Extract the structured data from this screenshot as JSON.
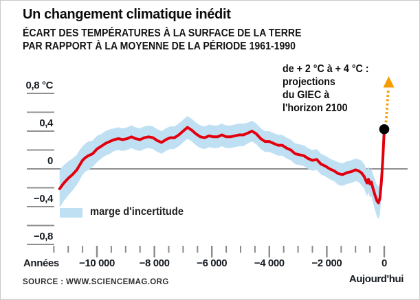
{
  "colors": {
    "line_red": "#e3000e",
    "band_blue": "#bfe0f3",
    "axis_gray": "#8f8f8f",
    "arrow_orange": "#f59c00",
    "dot_black": "#000000"
  },
  "source": {
    "text": "SOURCE : WWW.SCIENCEMAG.ORG"
  },
  "chart_data": {
    "type": "line",
    "title": "Un changement climatique inédit",
    "subtitle_line1": "ÉCART DES TEMPÉRATURES À LA SURFACE DE LA TERRE",
    "subtitle_line2": "PAR RAPPORT À LA MOYENNE DE LA PÉRIODE 1961-1990",
    "x_axis_label": "Années",
    "today_label": "Aujourd'hui",
    "legend_position": "bottom-left-inside",
    "grid": "zero-line-only",
    "x_range": [
      -11500,
      0
    ],
    "ylim": [
      -0.9,
      0.9
    ],
    "xticks_major": [
      -10000,
      -8000,
      -6000,
      -4000,
      -2000,
      0
    ],
    "xtick_labels": [
      "−10 000",
      "−8 000",
      "−6 000",
      "−4 000",
      "−2 000",
      "0"
    ],
    "xtick_minor_step": 500,
    "yticks_major": [
      0.8,
      0.4,
      0,
      -0.4,
      -0.8
    ],
    "ytick_labels": [
      "0,8 °C",
      "0,4",
      "0",
      "−0,4",
      "−0,8"
    ],
    "ytick_minor_step": 0.2,
    "series": [
      {
        "name": "écart des températures (°C)",
        "type": "line",
        "years": [
          -11300,
          -11150,
          -11000,
          -10850,
          -10700,
          -10600,
          -10500,
          -10400,
          -10300,
          -10150,
          -10000,
          -9850,
          -9700,
          -9550,
          -9400,
          -9250,
          -9100,
          -8950,
          -8800,
          -8650,
          -8500,
          -8350,
          -8200,
          -8050,
          -7900,
          -7750,
          -7600,
          -7450,
          -7300,
          -7150,
          -7000,
          -6850,
          -6700,
          -6550,
          -6400,
          -6250,
          -6100,
          -5950,
          -5800,
          -5650,
          -5500,
          -5350,
          -5200,
          -5050,
          -4900,
          -4750,
          -4600,
          -4450,
          -4300,
          -4150,
          -4000,
          -3850,
          -3700,
          -3550,
          -3400,
          -3250,
          -3100,
          -2950,
          -2800,
          -2650,
          -2500,
          -2350,
          -2200,
          -2050,
          -1900,
          -1750,
          -1600,
          -1450,
          -1300,
          -1150,
          -1000,
          -900,
          -800,
          -700,
          -600,
          -550,
          -500,
          -450,
          -400,
          -350,
          -300,
          -250,
          -200,
          -150,
          -100,
          -50,
          0
        ],
        "values": [
          -0.21,
          -0.15,
          -0.1,
          -0.06,
          -0.01,
          0.04,
          0.09,
          0.12,
          0.14,
          0.16,
          0.21,
          0.24,
          0.27,
          0.29,
          0.31,
          0.32,
          0.31,
          0.32,
          0.34,
          0.32,
          0.31,
          0.33,
          0.34,
          0.33,
          0.3,
          0.28,
          0.31,
          0.33,
          0.33,
          0.36,
          0.4,
          0.44,
          0.41,
          0.37,
          0.34,
          0.33,
          0.35,
          0.34,
          0.34,
          0.36,
          0.34,
          0.34,
          0.35,
          0.36,
          0.36,
          0.38,
          0.4,
          0.37,
          0.32,
          0.29,
          0.29,
          0.27,
          0.25,
          0.25,
          0.22,
          0.2,
          0.16,
          0.15,
          0.14,
          0.11,
          0.09,
          0.1,
          0.05,
          0.03,
          0.0,
          -0.02,
          -0.05,
          -0.06,
          -0.04,
          -0.03,
          -0.01,
          -0.02,
          -0.04,
          -0.08,
          -0.15,
          -0.11,
          -0.16,
          -0.14,
          -0.2,
          -0.25,
          -0.3,
          -0.34,
          -0.36,
          -0.31,
          -0.14,
          0.1,
          0.42
        ]
      },
      {
        "name": "marge d'incertitude",
        "type": "band",
        "halfwidths": [
          0.2,
          0.19,
          0.18,
          0.17,
          0.16,
          0.16,
          0.15,
          0.15,
          0.15,
          0.14,
          0.14,
          0.13,
          0.13,
          0.13,
          0.12,
          0.12,
          0.12,
          0.12,
          0.12,
          0.12,
          0.12,
          0.12,
          0.12,
          0.12,
          0.12,
          0.12,
          0.12,
          0.12,
          0.12,
          0.12,
          0.12,
          0.12,
          0.12,
          0.12,
          0.12,
          0.12,
          0.12,
          0.12,
          0.12,
          0.12,
          0.12,
          0.12,
          0.12,
          0.12,
          0.12,
          0.11,
          0.11,
          0.11,
          0.11,
          0.11,
          0.11,
          0.11,
          0.11,
          0.11,
          0.11,
          0.11,
          0.11,
          0.11,
          0.11,
          0.11,
          0.11,
          0.11,
          0.11,
          0.11,
          0.11,
          0.11,
          0.12,
          0.12,
          0.12,
          0.12,
          0.12,
          0.12,
          0.13,
          0.13,
          0.14,
          0.14,
          0.14,
          0.15,
          0.15,
          0.16,
          0.16,
          0.17,
          0.17,
          0.17,
          0.16,
          0.15,
          0.15
        ],
        "band_end_year": -100
      }
    ],
    "projection": {
      "dot_year": 0,
      "dot_value": 0.42,
      "label_line1": "de + 2 °C à + 4 °C :",
      "label_line2": "projections",
      "label_line3": "du GIEC à",
      "label_line4": "l'horizon 2100"
    }
  }
}
